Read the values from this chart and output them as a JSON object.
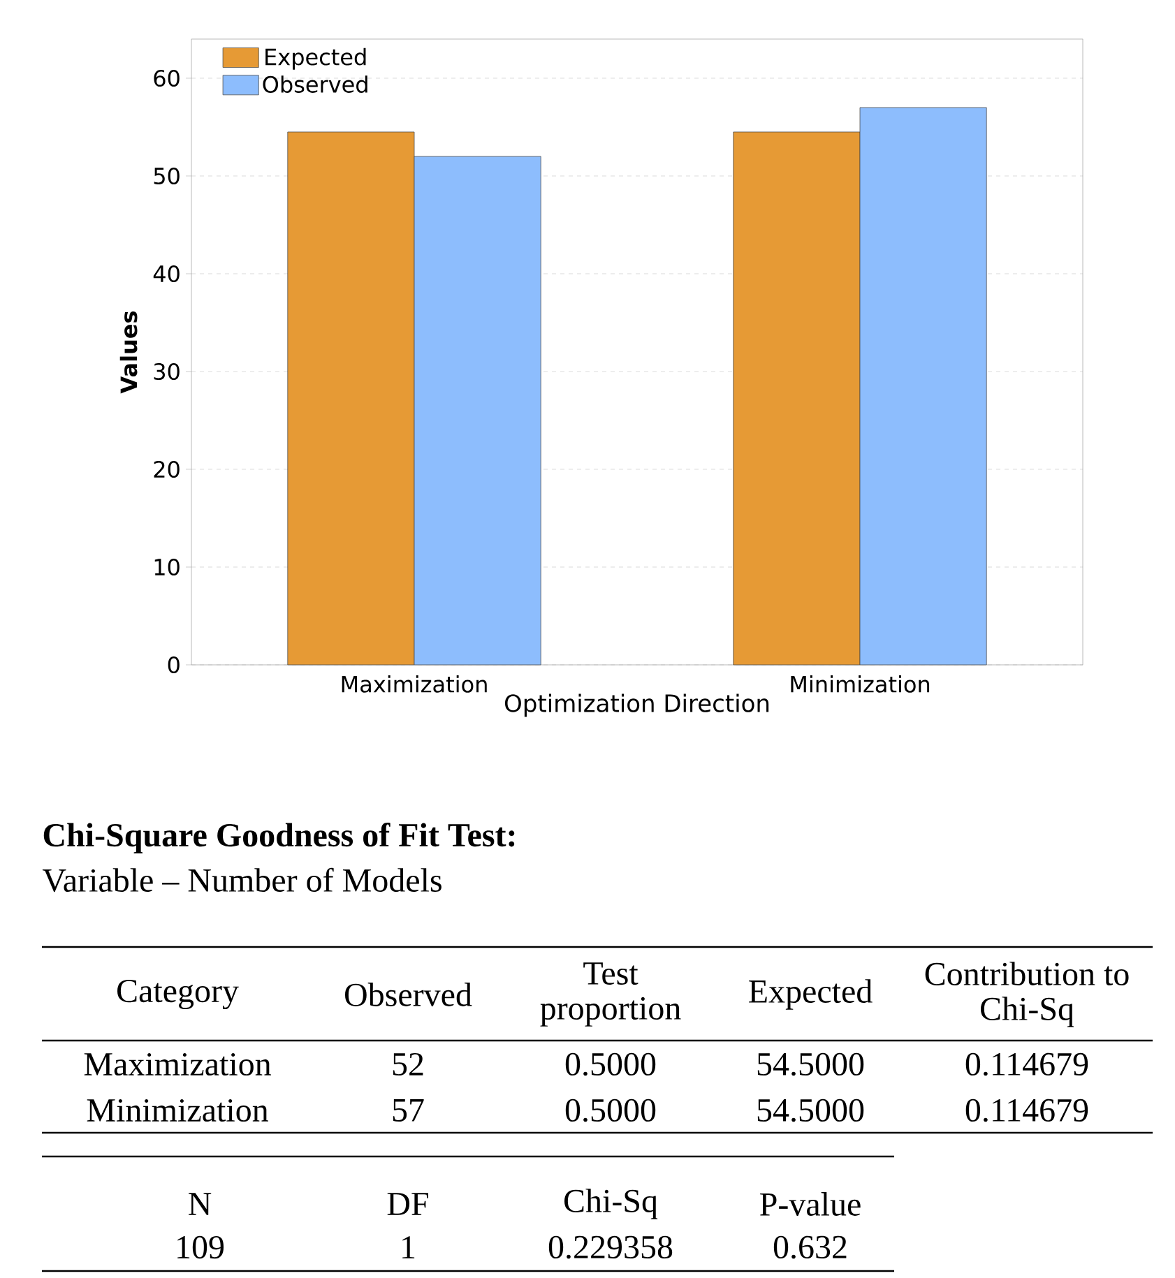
{
  "chart_data": {
    "type": "bar",
    "xlabel": "Optimization Direction",
    "ylabel": "Values",
    "categories": [
      "Maximization",
      "Minimization"
    ],
    "series": [
      {
        "name": "Expected",
        "color": "#e69a35",
        "values": [
          54.5,
          54.5
        ]
      },
      {
        "name": "Observed",
        "color": "#8dbdfd",
        "values": [
          52,
          57
        ]
      }
    ],
    "ylim": [
      0,
      64
    ],
    "yticks": [
      0,
      10,
      20,
      30,
      40,
      50,
      60
    ],
    "grid": "y",
    "legend": "top left",
    "annotations": [
      "**Chi-Square Goodness of Fit Test:**",
      "Variable – Number of Models",
      "Category",
      "Observed",
      "Test proportion",
      "Expected",
      "Contribution to Chi-Sq",
      "Maximization",
      "52",
      "0.5000",
      "54.5000",
      "0.114679",
      "Minimization",
      "57",
      "0.5000",
      "54.5000",
      "0.114679",
      "N",
      "DF",
      "Chi-Sq",
      "P-value",
      "109",
      "1",
      "0.229358",
      "0.632"
    ]
  }
}
